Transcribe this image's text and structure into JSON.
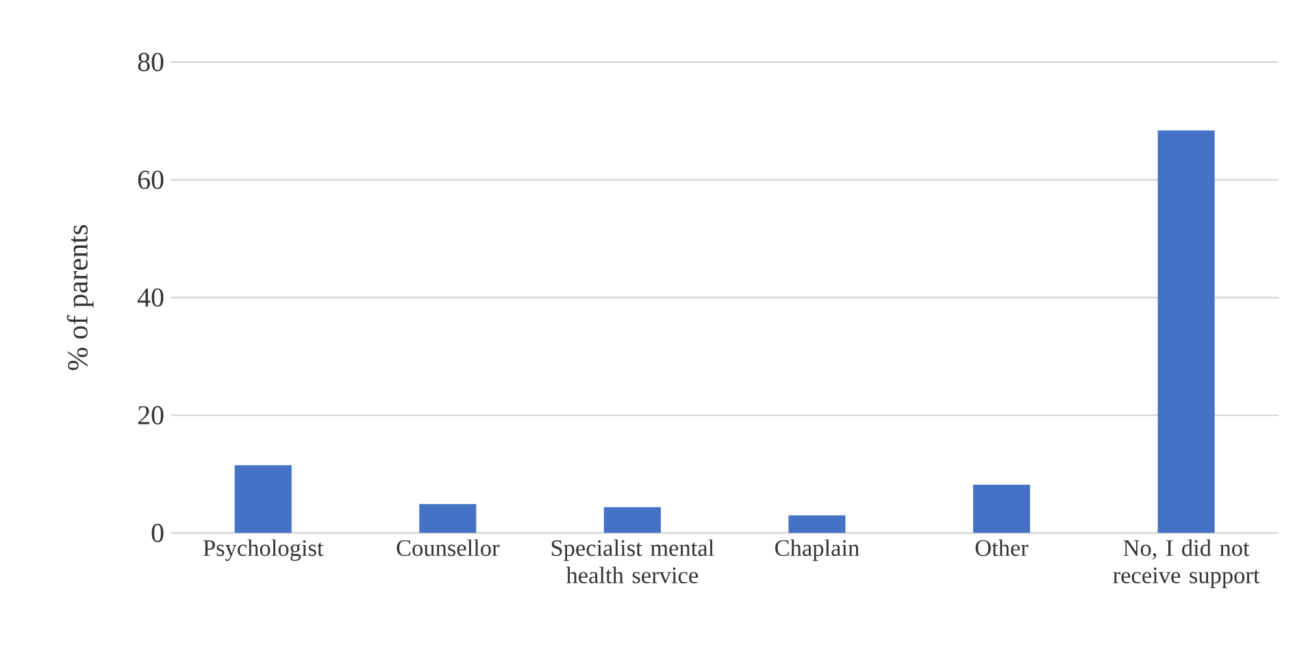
{
  "chart_data": {
    "type": "bar",
    "ylabel": "% of parents",
    "categories": [
      "Psychologist",
      "Counsellor",
      "Specialist mental health service",
      "Chaplain",
      "Other",
      "No, I did not receive support"
    ],
    "values": [
      11.5,
      4.9,
      4.4,
      3.0,
      8.2,
      68.4
    ],
    "color": "#4472c4",
    "ylim": [
      0,
      80
    ],
    "yticks": [
      0,
      20,
      40,
      60,
      80
    ],
    "grid": "y"
  }
}
